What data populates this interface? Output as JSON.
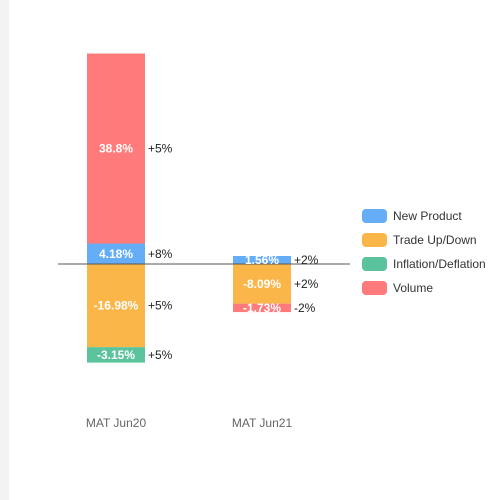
{
  "chart_data": {
    "type": "bar",
    "subtype": "stacked-waterfall",
    "categories": [
      "MAT Jun20",
      "MAT Jun21"
    ],
    "series": [
      {
        "name": "New Product",
        "color": "#65aef7",
        "values": [
          4.18,
          1.56
        ],
        "labels": [
          "4.18%",
          "1.56%"
        ],
        "changes": [
          "+8%",
          "+2%"
        ]
      },
      {
        "name": "Trade Up/Down",
        "color": "#fbb64a",
        "values": [
          -16.98,
          -8.09
        ],
        "labels": [
          "-16.98%",
          "-8.09%"
        ],
        "changes": [
          "+5%",
          "+2%"
        ]
      },
      {
        "name": "Inflation/Deflation",
        "color": "#5bc39b",
        "values": [
          -3.15,
          null
        ],
        "labels": [
          "-3.15%",
          ""
        ],
        "changes": [
          "+5%",
          ""
        ]
      },
      {
        "name": "Volume",
        "color": "#ff7b7b",
        "values": [
          38.8,
          -1.73
        ],
        "labels": [
          "38.8%",
          "-1.73%"
        ],
        "changes": [
          "+5%",
          "-2%"
        ]
      }
    ],
    "baseline": 0,
    "ylim": [
      -22,
      45
    ],
    "grid": false,
    "legend_position": "right",
    "title": "",
    "xlabel": "",
    "ylabel": ""
  }
}
